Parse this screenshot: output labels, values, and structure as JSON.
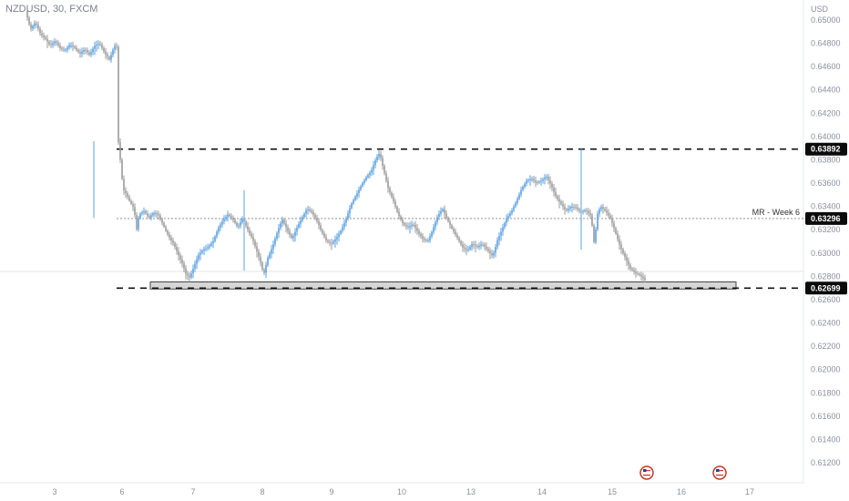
{
  "symbol_label": "NZDUSD, 30, FXCM",
  "currency": "USD",
  "chart_data": {
    "type": "candlestick",
    "interval": "30",
    "y_axis_ticks": [
      "0.65000",
      "0.64800",
      "0.64600",
      "0.64400",
      "0.64200",
      "0.64000",
      "0.63800",
      "0.63600",
      "0.63400",
      "0.63200",
      "0.63000",
      "0.62800",
      "0.62600",
      "0.62400",
      "0.62200",
      "0.62000",
      "0.61800",
      "0.61600",
      "0.61400",
      "0.61200"
    ],
    "ylim": [
      0.6115,
      0.6515
    ],
    "x_axis_ticks": [
      "3",
      "6",
      "7",
      "8",
      "9",
      "10",
      "13",
      "14",
      "15",
      "16",
      "17"
    ],
    "levels": [
      {
        "value": 0.63892,
        "label": "0.63892",
        "style": "dashed-bold"
      },
      {
        "value": 0.63296,
        "label": "0.63296",
        "style": "dotted-thin",
        "note": "MR - Week 6"
      },
      {
        "value": 0.62699,
        "label": "0.62699",
        "style": "dashed-bold"
      }
    ],
    "support_zone": {
      "low": 0.62699,
      "high": 0.6276
    },
    "price_path": [
      [
        0,
        0.6508
      ],
      [
        4,
        0.6492
      ],
      [
        8,
        0.6498
      ],
      [
        12,
        0.6488
      ],
      [
        16,
        0.6484
      ],
      [
        20,
        0.6478
      ],
      [
        24,
        0.6482
      ],
      [
        28,
        0.6476
      ],
      [
        32,
        0.6474
      ],
      [
        36,
        0.6479
      ],
      [
        40,
        0.6476
      ],
      [
        44,
        0.6471
      ],
      [
        48,
        0.6475
      ],
      [
        52,
        0.647
      ],
      [
        56,
        0.6478
      ],
      [
        60,
        0.648
      ],
      [
        64,
        0.6472
      ],
      [
        68,
        0.6466
      ],
      [
        72,
        0.6478
      ],
      [
        74,
        0.6477
      ],
      [
        75,
        0.6398
      ],
      [
        77,
        0.6378
      ],
      [
        79,
        0.6355
      ],
      [
        82,
        0.635
      ],
      [
        85,
        0.6343
      ],
      [
        88,
        0.6338
      ],
      [
        90,
        0.632
      ],
      [
        92,
        0.6333
      ],
      [
        96,
        0.6336
      ],
      [
        100,
        0.633
      ],
      [
        104,
        0.6335
      ],
      [
        108,
        0.6332
      ],
      [
        112,
        0.6323
      ],
      [
        116,
        0.6314
      ],
      [
        120,
        0.6308
      ],
      [
        124,
        0.6298
      ],
      [
        127,
        0.6291
      ],
      [
        130,
        0.6282
      ],
      [
        133,
        0.6279
      ],
      [
        136,
        0.6287
      ],
      [
        140,
        0.6298
      ],
      [
        144,
        0.6303
      ],
      [
        148,
        0.6305
      ],
      [
        152,
        0.631
      ],
      [
        156,
        0.6321
      ],
      [
        160,
        0.6328
      ],
      [
        164,
        0.6333
      ],
      [
        168,
        0.6329
      ],
      [
        172,
        0.6322
      ],
      [
        176,
        0.633
      ],
      [
        180,
        0.632
      ],
      [
        184,
        0.6312
      ],
      [
        188,
        0.63
      ],
      [
        191,
        0.629
      ],
      [
        193,
        0.6281
      ],
      [
        196,
        0.6295
      ],
      [
        200,
        0.6305
      ],
      [
        204,
        0.6318
      ],
      [
        208,
        0.6329
      ],
      [
        212,
        0.632
      ],
      [
        216,
        0.6312
      ],
      [
        220,
        0.6322
      ],
      [
        224,
        0.633
      ],
      [
        228,
        0.6338
      ],
      [
        232,
        0.6335
      ],
      [
        236,
        0.6328
      ],
      [
        240,
        0.6318
      ],
      [
        244,
        0.631
      ],
      [
        248,
        0.6308
      ],
      [
        252,
        0.6313
      ],
      [
        256,
        0.632
      ],
      [
        260,
        0.633
      ],
      [
        264,
        0.6342
      ],
      [
        268,
        0.635
      ],
      [
        272,
        0.6358
      ],
      [
        276,
        0.6365
      ],
      [
        280,
        0.637
      ],
      [
        284,
        0.6381
      ],
      [
        287,
        0.6386
      ],
      [
        290,
        0.6372
      ],
      [
        294,
        0.6355
      ],
      [
        298,
        0.6345
      ],
      [
        302,
        0.6333
      ],
      [
        306,
        0.6325
      ],
      [
        310,
        0.6322
      ],
      [
        314,
        0.6325
      ],
      [
        318,
        0.6318
      ],
      [
        322,
        0.6312
      ],
      [
        326,
        0.631
      ],
      [
        330,
        0.632
      ],
      [
        334,
        0.6332
      ],
      [
        338,
        0.6338
      ],
      [
        342,
        0.6328
      ],
      [
        346,
        0.632
      ],
      [
        350,
        0.6313
      ],
      [
        354,
        0.6305
      ],
      [
        358,
        0.6302
      ],
      [
        362,
        0.6308
      ],
      [
        366,
        0.6305
      ],
      [
        370,
        0.6308
      ],
      [
        374,
        0.6303
      ],
      [
        378,
        0.6298
      ],
      [
        380,
        0.6301
      ],
      [
        382,
        0.631
      ],
      [
        386,
        0.632
      ],
      [
        390,
        0.633
      ],
      [
        394,
        0.6336
      ],
      [
        398,
        0.6345
      ],
      [
        402,
        0.6355
      ],
      [
        406,
        0.6362
      ],
      [
        410,
        0.6364
      ],
      [
        414,
        0.636
      ],
      [
        418,
        0.6362
      ],
      [
        422,
        0.6366
      ],
      [
        426,
        0.6358
      ],
      [
        430,
        0.6348
      ],
      [
        434,
        0.6342
      ],
      [
        438,
        0.6336
      ],
      [
        442,
        0.634
      ],
      [
        446,
        0.6339
      ],
      [
        450,
        0.6335
      ],
      [
        454,
        0.6337
      ],
      [
        458,
        0.6332
      ],
      [
        460,
        0.6318
      ],
      [
        461,
        0.6305
      ],
      [
        463,
        0.6332
      ],
      [
        466,
        0.634
      ],
      [
        470,
        0.6336
      ],
      [
        474,
        0.633
      ],
      [
        478,
        0.6318
      ],
      [
        482,
        0.6305
      ],
      [
        486,
        0.6296
      ],
      [
        490,
        0.6287
      ],
      [
        494,
        0.6283
      ],
      [
        498,
        0.6281
      ],
      [
        502,
        0.6277
      ]
    ]
  }
}
